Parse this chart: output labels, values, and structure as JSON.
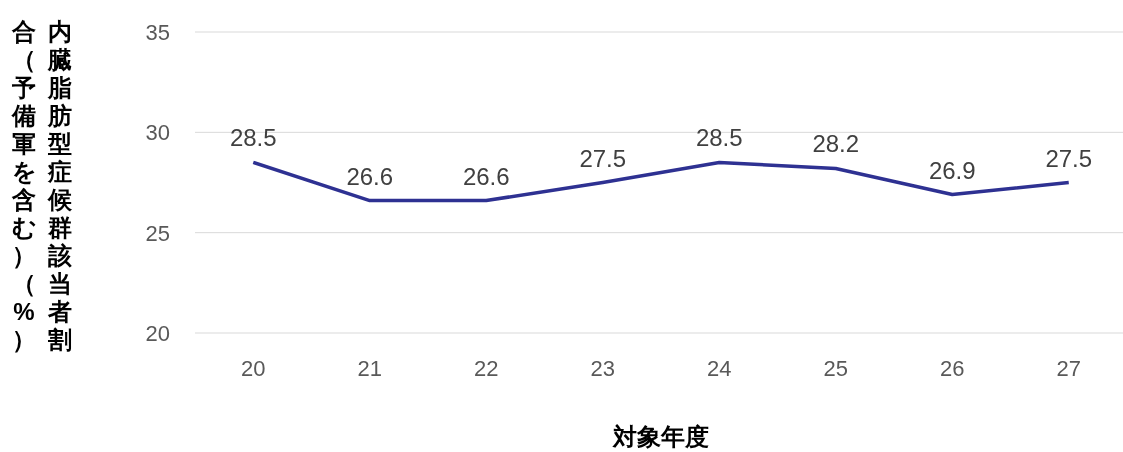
{
  "chart_data": {
    "type": "line",
    "xlabel": "対象年度",
    "ylabel": "内臓脂肪型症候群該当者割合（予備軍を含む）（%）",
    "categories": [
      "20",
      "21",
      "22",
      "23",
      "24",
      "25",
      "26",
      "27"
    ],
    "series": [
      {
        "color": "#2e3192",
        "values": [
          28.5,
          26.6,
          26.6,
          27.5,
          28.5,
          28.2,
          26.9,
          27.5
        ]
      }
    ],
    "ylim": [
      20,
      35
    ],
    "yticks": [
      20,
      25,
      30,
      35
    ],
    "grid": "y",
    "data_labels": true,
    "marker": "none",
    "line_style": "solid"
  }
}
